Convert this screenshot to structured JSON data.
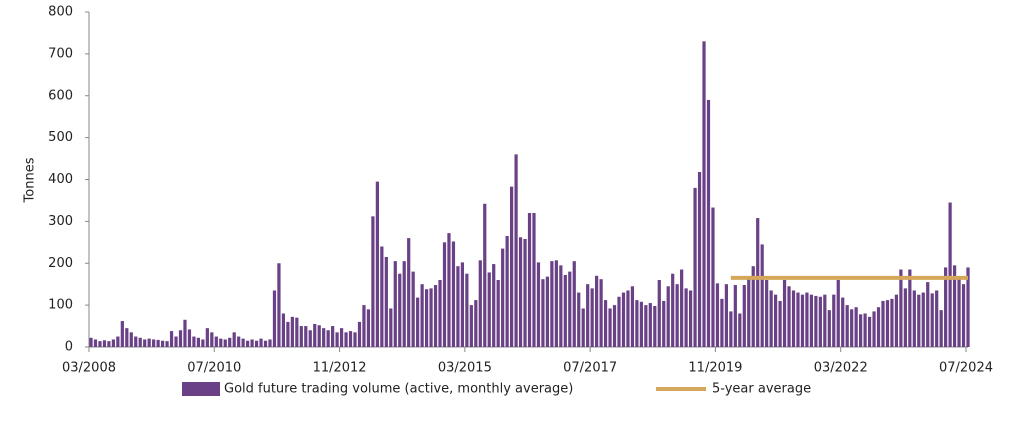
{
  "chart_data": {
    "type": "bar",
    "y_label": "Tonnes",
    "categories": [
      "03/2008",
      null,
      null,
      null,
      null,
      null,
      null,
      null,
      null,
      null,
      null,
      null,
      null,
      null,
      null,
      null,
      null,
      null,
      null,
      null,
      null,
      null,
      null,
      null,
      null,
      null,
      null,
      null,
      "07/2010",
      null,
      null,
      null,
      null,
      null,
      null,
      null,
      null,
      null,
      null,
      null,
      null,
      null,
      null,
      null,
      null,
      null,
      null,
      null,
      null,
      null,
      null,
      null,
      null,
      null,
      null,
      null,
      "11/2012",
      null,
      null,
      null,
      null,
      null,
      null,
      null,
      null,
      null,
      null,
      null,
      null,
      null,
      null,
      null,
      null,
      null,
      null,
      null,
      null,
      null,
      null,
      null,
      null,
      null,
      null,
      null,
      "03/2015",
      null,
      null,
      null,
      null,
      null,
      null,
      null,
      null,
      null,
      null,
      null,
      null,
      null,
      null,
      null,
      null,
      null,
      null,
      null,
      null,
      null,
      null,
      null,
      null,
      null,
      null,
      null,
      "07/2017",
      null,
      null,
      null,
      null,
      null,
      null,
      null,
      null,
      null,
      null,
      null,
      null,
      null,
      null,
      null,
      null,
      null,
      null,
      null,
      null,
      null,
      null,
      null,
      null,
      null,
      null,
      null,
      "11/2019",
      null,
      null,
      null,
      null,
      null,
      null,
      null,
      null,
      null,
      null,
      null,
      null,
      null,
      null,
      null,
      null,
      null,
      null,
      null,
      null,
      null,
      null,
      null,
      null,
      null,
      null,
      null,
      "03/2022",
      null,
      null,
      null,
      null,
      null,
      null,
      null,
      null,
      null,
      null,
      null,
      null,
      null,
      null,
      null,
      null,
      null,
      null,
      null,
      null,
      null,
      null,
      null,
      null,
      null,
      null,
      null,
      "07/2024"
    ],
    "series": [
      {
        "name": "Gold future trading volume (active, monthly average)",
        "type": "bar",
        "color": "#6a4187",
        "values": [
          22,
          18,
          14,
          16,
          14,
          18,
          25,
          62,
          45,
          35,
          25,
          22,
          18,
          20,
          18,
          17,
          15,
          14,
          38,
          25,
          40,
          65,
          42,
          25,
          22,
          18,
          45,
          35,
          25,
          20,
          18,
          22,
          35,
          25,
          20,
          15,
          18,
          15,
          20,
          15,
          18,
          135,
          200,
          80,
          60,
          72,
          70,
          50,
          50,
          40,
          55,
          52,
          45,
          40,
          50,
          35,
          45,
          35,
          38,
          35,
          60,
          100,
          90,
          312,
          395,
          240,
          215,
          92,
          205,
          175,
          205,
          260,
          180,
          118,
          150,
          138,
          140,
          148,
          160,
          250,
          272,
          252,
          193,
          202,
          175,
          100,
          112,
          207,
          342,
          178,
          198,
          160,
          235,
          265,
          383,
          460,
          262,
          258,
          320,
          320,
          202,
          162,
          168,
          205,
          207,
          195,
          172,
          180,
          205,
          130,
          92,
          150,
          140,
          170,
          162,
          112,
          92,
          100,
          120,
          130,
          135,
          145,
          112,
          108,
          100,
          105,
          98,
          160,
          110,
          145,
          175,
          150,
          185,
          140,
          135,
          380,
          418,
          730,
          590,
          333,
          152,
          115,
          150,
          85,
          148,
          80,
          148,
          165,
          193,
          308,
          245,
          160,
          135,
          125,
          110,
          160,
          145,
          135,
          130,
          125,
          130,
          125,
          122,
          120,
          125,
          88,
          125,
          160,
          118,
          100,
          90,
          95,
          78,
          80,
          72,
          85,
          95,
          110,
          112,
          115,
          125,
          185,
          140,
          185,
          135,
          125,
          130,
          155,
          128,
          135,
          88,
          190,
          345,
          195,
          165,
          150,
          190
        ]
      },
      {
        "name": "5-year average",
        "type": "line",
        "color": "#d4a75a",
        "values": [
          null,
          null,
          null,
          null,
          null,
          null,
          null,
          null,
          null,
          null,
          null,
          null,
          null,
          null,
          null,
          null,
          null,
          null,
          null,
          null,
          null,
          null,
          null,
          null,
          null,
          null,
          null,
          null,
          null,
          null,
          null,
          null,
          null,
          null,
          null,
          null,
          null,
          null,
          null,
          null,
          null,
          null,
          null,
          null,
          null,
          null,
          null,
          null,
          null,
          null,
          null,
          null,
          null,
          null,
          null,
          null,
          null,
          null,
          null,
          null,
          null,
          null,
          null,
          null,
          null,
          null,
          null,
          null,
          null,
          null,
          null,
          null,
          null,
          null,
          null,
          null,
          null,
          null,
          null,
          null,
          null,
          null,
          null,
          null,
          null,
          null,
          null,
          null,
          null,
          null,
          null,
          null,
          null,
          null,
          null,
          null,
          null,
          null,
          null,
          null,
          null,
          null,
          null,
          null,
          null,
          null,
          null,
          null,
          null,
          null,
          null,
          null,
          null,
          null,
          null,
          null,
          null,
          null,
          null,
          null,
          null,
          null,
          null,
          null,
          null,
          null,
          null,
          null,
          null,
          null,
          null,
          null,
          null,
          null,
          null,
          null,
          null,
          null,
          null,
          null,
          null,
          null,
          null,
          165,
          165,
          165,
          165,
          165,
          165,
          165,
          165,
          165,
          165,
          165,
          165,
          165,
          165,
          165,
          165,
          165,
          165,
          165,
          165,
          165,
          165,
          165,
          165,
          165,
          165,
          165,
          165,
          165,
          165,
          165,
          165,
          165,
          165,
          165,
          165,
          165,
          165,
          165,
          165,
          165,
          165,
          165,
          165,
          165,
          165,
          165,
          165,
          165,
          165,
          165,
          165,
          165,
          165
        ]
      }
    ],
    "ylim": [
      0,
      800
    ],
    "yticks": [
      0,
      100,
      200,
      300,
      400,
      500,
      600,
      700,
      800
    ],
    "grid": false
  }
}
